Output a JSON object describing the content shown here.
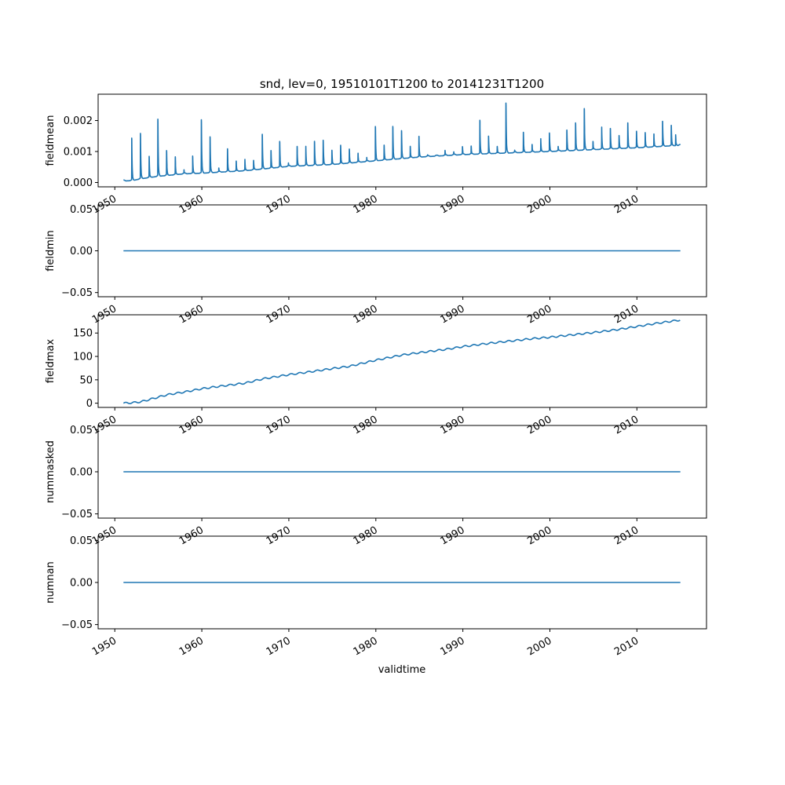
{
  "chart_data": {
    "type": "line",
    "title": "snd, lev=0, 19510101T1200 to 20141231T1200",
    "xlabel": "validtime",
    "x_axis": {
      "type": "date",
      "xlim": [
        "1948-02-01",
        "2017-12-31"
      ],
      "tick_labels": [
        "1950",
        "1960",
        "1970",
        "1980",
        "1990",
        "2000",
        "2010"
      ],
      "tick_values": [
        "1950-01-01",
        "1960-01-01",
        "1970-01-01",
        "1980-01-01",
        "1990-01-01",
        "2000-01-01",
        "2010-01-01"
      ],
      "label_rotation_deg": 30
    },
    "grid": false,
    "line_color": "#1f77b4",
    "panels": [
      {
        "ylabel": "fieldmean",
        "ylim": [
          -0.00014,
          0.00285
        ],
        "yticks": [
          0.0,
          0.001,
          0.002
        ],
        "ytick_labels": [
          "0.000",
          "0.001",
          "0.002"
        ],
        "series": {
          "description_of_shape": "seasonal snow-depth mean: low summer baseline rising slowly with sharp winter peaks",
          "baseline": [
            [
              "1951-01-01",
              5e-05
            ],
            [
              "1952-01-01",
              6e-05
            ],
            [
              "1953-01-01",
              0.00012
            ],
            [
              "1955-01-01",
              0.0002
            ],
            [
              "1958-01-01",
              0.00028
            ],
            [
              "1960-01-01",
              0.0003
            ],
            [
              "1965-01-01",
              0.00038
            ],
            [
              "1970-01-01",
              0.00052
            ],
            [
              "1975-01-01",
              0.00058
            ],
            [
              "1980-01-01",
              0.0007
            ],
            [
              "1985-01-01",
              0.00082
            ],
            [
              "1990-01-01",
              0.0009
            ],
            [
              "1995-01-01",
              0.00095
            ],
            [
              "2000-01-01",
              0.001
            ],
            [
              "2005-01-01",
              0.00106
            ],
            [
              "2010-01-01",
              0.00112
            ],
            [
              "2014-12-31",
              0.0012
            ]
          ],
          "winter_peaks": [
            [
              "1951-12-15",
              0.00155
            ],
            [
              "1952-12-15",
              0.00172
            ],
            [
              "1953-12-15",
              0.0009
            ],
            [
              "1954-12-15",
              0.0022
            ],
            [
              "1955-12-15",
              0.0011
            ],
            [
              "1956-12-15",
              0.00088
            ],
            [
              "1957-12-15",
              0.00042
            ],
            [
              "1958-12-15",
              0.0009
            ],
            [
              "1959-12-15",
              0.00217
            ],
            [
              "1960-12-15",
              0.00158
            ],
            [
              "1961-12-15",
              0.00048
            ],
            [
              "1962-12-15",
              0.00115
            ],
            [
              "1963-12-15",
              0.00072
            ],
            [
              "1964-12-15",
              0.00078
            ],
            [
              "1965-12-15",
              0.00074
            ],
            [
              "1966-12-15",
              0.00165
            ],
            [
              "1967-12-15",
              0.00108
            ],
            [
              "1968-12-15",
              0.0014
            ],
            [
              "1969-12-15",
              0.00064
            ],
            [
              "1970-12-15",
              0.00122
            ],
            [
              "1971-12-15",
              0.00122
            ],
            [
              "1972-12-15",
              0.0014
            ],
            [
              "1973-12-15",
              0.00143
            ],
            [
              "1974-12-15",
              0.00108
            ],
            [
              "1975-12-15",
              0.00125
            ],
            [
              "1976-12-15",
              0.00112
            ],
            [
              "1977-12-15",
              0.00097
            ],
            [
              "1978-12-15",
              0.00082
            ],
            [
              "1979-12-15",
              0.0019
            ],
            [
              "1980-12-15",
              0.00125
            ],
            [
              "1981-12-15",
              0.0019
            ],
            [
              "1982-12-15",
              0.00175
            ],
            [
              "1983-12-15",
              0.0012
            ],
            [
              "1984-12-15",
              0.00155
            ],
            [
              "1985-12-15",
              0.0009
            ],
            [
              "1986-12-15",
              0.00088
            ],
            [
              "1987-12-15",
              0.00105
            ],
            [
              "1988-12-15",
              0.001
            ],
            [
              "1989-12-15",
              0.00118
            ],
            [
              "1990-12-15",
              0.0012
            ],
            [
              "1991-12-15",
              0.0021
            ],
            [
              "1992-12-15",
              0.00155
            ],
            [
              "1993-12-15",
              0.00118
            ],
            [
              "1994-12-15",
              0.0027
            ],
            [
              "1995-12-15",
              0.00105
            ],
            [
              "1996-12-15",
              0.00168
            ],
            [
              "1997-12-15",
              0.00125
            ],
            [
              "1998-12-15",
              0.00145
            ],
            [
              "1999-12-15",
              0.00165
            ],
            [
              "2000-12-15",
              0.00118
            ],
            [
              "2001-12-15",
              0.00175
            ],
            [
              "2002-12-15",
              0.002
            ],
            [
              "2003-12-15",
              0.0025
            ],
            [
              "2004-12-15",
              0.00135
            ],
            [
              "2005-12-15",
              0.00185
            ],
            [
              "2006-12-15",
              0.0018
            ],
            [
              "2007-12-15",
              0.00155
            ],
            [
              "2008-12-15",
              0.002
            ],
            [
              "2009-12-15",
              0.0017
            ],
            [
              "2010-12-15",
              0.00165
            ],
            [
              "2011-12-15",
              0.0016
            ],
            [
              "2012-12-15",
              0.00205
            ],
            [
              "2013-12-15",
              0.0019
            ],
            [
              "2014-06-15",
              0.00155
            ]
          ]
        }
      },
      {
        "ylabel": "fieldmin",
        "ylim": [
          -0.055,
          0.055
        ],
        "yticks": [
          -0.05,
          0.0,
          0.05
        ],
        "ytick_labels": [
          "−0.05",
          "0.00",
          "0.05"
        ],
        "series": {
          "constant": 0.0,
          "x_range": [
            "1951-01-01",
            "2014-12-31"
          ]
        }
      },
      {
        "ylabel": "fieldmax",
        "ylim": [
          -9,
          189
        ],
        "yticks": [
          0,
          50,
          100,
          150
        ],
        "ytick_labels": [
          "0",
          "50",
          "100",
          "150"
        ],
        "series": {
          "points": [
            [
              "1951-01-01",
              0
            ],
            [
              "1952-01-01",
              1
            ],
            [
              "1953-01-01",
              3
            ],
            [
              "1954-01-01",
              8
            ],
            [
              "1955-01-01",
              13
            ],
            [
              "1956-01-01",
              18
            ],
            [
              "1958-01-01",
              24
            ],
            [
              "1960-01-01",
              31
            ],
            [
              "1962-01-01",
              36
            ],
            [
              "1965-01-01",
              43
            ],
            [
              "1967-01-01",
              52
            ],
            [
              "1970-01-01",
              61
            ],
            [
              "1972-01-01",
              66
            ],
            [
              "1975-01-01",
              74
            ],
            [
              "1977-01-01",
              79
            ],
            [
              "1980-01-01",
              92
            ],
            [
              "1983-01-01",
              103
            ],
            [
              "1985-01-01",
              108
            ],
            [
              "1988-01-01",
              115
            ],
            [
              "1990-01-01",
              121
            ],
            [
              "1993-01-01",
              128
            ],
            [
              "1995-01-01",
              132
            ],
            [
              "1998-01-01",
              138
            ],
            [
              "2000-01-01",
              141
            ],
            [
              "2003-01-01",
              147
            ],
            [
              "2005-01-01",
              151
            ],
            [
              "2008-01-01",
              158
            ],
            [
              "2010-01-01",
              164
            ],
            [
              "2012-01-01",
              170
            ],
            [
              "2014-12-31",
              178
            ]
          ],
          "seasonal_ripple": 1.6
        }
      },
      {
        "ylabel": "nummasked",
        "ylim": [
          -0.055,
          0.055
        ],
        "yticks": [
          -0.05,
          0.0,
          0.05
        ],
        "ytick_labels": [
          "−0.05",
          "0.00",
          "0.05"
        ],
        "series": {
          "constant": 0.0,
          "x_range": [
            "1951-01-01",
            "2014-12-31"
          ]
        }
      },
      {
        "ylabel": "numnan",
        "ylim": [
          -0.055,
          0.055
        ],
        "yticks": [
          -0.05,
          0.0,
          0.05
        ],
        "ytick_labels": [
          "−0.05",
          "0.00",
          "0.05"
        ],
        "series": {
          "constant": 0.0,
          "x_range": [
            "1951-01-01",
            "2014-12-31"
          ]
        }
      }
    ]
  }
}
